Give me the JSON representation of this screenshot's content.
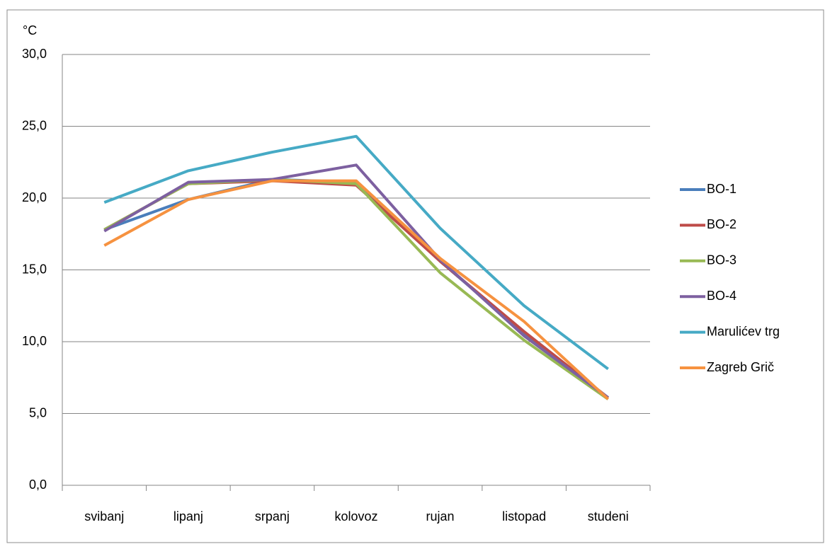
{
  "chart_data": {
    "type": "line",
    "y_label": "°C",
    "categories": [
      "svibanj",
      "lipanj",
      "srpanj",
      "kolovoz",
      "rujan",
      "listopad",
      "studeni"
    ],
    "series": [
      {
        "name": "BO-1",
        "color": "#4a7ebb",
        "values": [
          17.8,
          19.9,
          21.3,
          21.1,
          15.6,
          10.6,
          6.1
        ]
      },
      {
        "name": "BO-2",
        "color": "#be4b48",
        "values": [
          17.8,
          21.0,
          21.2,
          20.9,
          15.6,
          10.7,
          6.1
        ]
      },
      {
        "name": "BO-3",
        "color": "#98b954",
        "values": [
          17.8,
          21.0,
          21.3,
          21.0,
          14.8,
          10.1,
          6.0
        ]
      },
      {
        "name": "BO-4",
        "color": "#7d60a0",
        "values": [
          17.7,
          21.1,
          21.3,
          22.3,
          15.7,
          10.4,
          6.1
        ]
      },
      {
        "name": "Marulićev trg",
        "color": "#46aac5",
        "values": [
          19.7,
          21.9,
          23.2,
          24.3,
          17.9,
          12.5,
          8.1
        ]
      },
      {
        "name": "Zagreb Grič",
        "color": "#f69240",
        "values": [
          16.7,
          19.9,
          21.2,
          21.2,
          15.8,
          11.4,
          6.0
        ]
      }
    ],
    "ylim": [
      0,
      30
    ],
    "yticks": [
      {
        "value": 0,
        "label": "0,0"
      },
      {
        "value": 5,
        "label": "5,0"
      },
      {
        "value": 10,
        "label": "10,0"
      },
      {
        "value": 15,
        "label": "15,0"
      },
      {
        "value": 20,
        "label": "20,0"
      },
      {
        "value": 25,
        "label": "25,0"
      },
      {
        "value": 30,
        "label": "30,0"
      }
    ],
    "grid": true,
    "legend": "right"
  }
}
